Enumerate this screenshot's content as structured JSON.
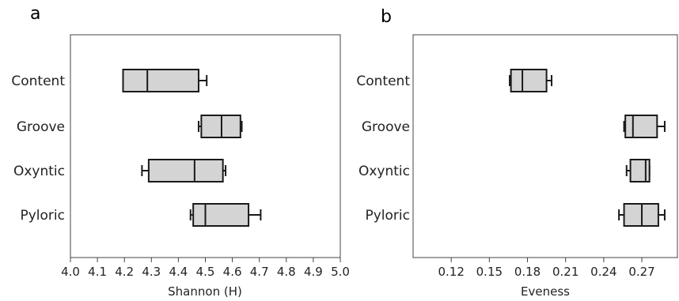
{
  "chart_data": [
    {
      "type": "box",
      "panel_label": "a",
      "title": "",
      "xlabel": "Shannon (H)",
      "ylabel": "",
      "xlim": [
        4.0,
        5.0
      ],
      "xticks": [
        "4.0",
        "4.1",
        "4.2",
        "4.3",
        "4.4",
        "4.5",
        "4.6",
        "4.7",
        "4.8",
        "4.9",
        "5.0"
      ],
      "categories": [
        "Content",
        "Groove",
        "Oxyntic",
        "Pyloric"
      ],
      "boxes": [
        {
          "min": 4.195,
          "q1": 4.195,
          "median": 4.285,
          "q3": 4.475,
          "max": 4.505
        },
        {
          "min": 4.475,
          "q1": 4.485,
          "median": 4.56,
          "q3": 4.63,
          "max": 4.635
        },
        {
          "min": 4.265,
          "q1": 4.29,
          "median": 4.46,
          "q3": 4.565,
          "max": 4.575
        },
        {
          "min": 4.445,
          "q1": 4.455,
          "median": 4.5,
          "q3": 4.66,
          "max": 4.705
        }
      ],
      "grid": false,
      "box_fill": "#d4d4d4",
      "line_color": "#1a1a1a"
    },
    {
      "type": "box",
      "panel_label": "b",
      "title": "",
      "xlabel": "Eveness",
      "ylabel": "",
      "xlim": [
        0.09,
        0.298
      ],
      "xticks": [
        "0.12",
        "0.15",
        "0.18",
        "0.21",
        "0.24",
        "0.27"
      ],
      "categories": [
        "Content",
        "Groove",
        "Oxyntic",
        "Pyloric"
      ],
      "boxes": [
        {
          "min": 0.166,
          "q1": 0.167,
          "median": 0.176,
          "q3": 0.195,
          "max": 0.199
        },
        {
          "min": 0.256,
          "q1": 0.257,
          "median": 0.263,
          "q3": 0.282,
          "max": 0.288
        },
        {
          "min": 0.258,
          "q1": 0.261,
          "median": 0.273,
          "q3": 0.276,
          "max": 0.276
        },
        {
          "min": 0.252,
          "q1": 0.256,
          "median": 0.27,
          "q3": 0.283,
          "max": 0.288
        }
      ],
      "grid": false,
      "box_fill": "#d4d4d4",
      "line_color": "#1a1a1a"
    }
  ]
}
